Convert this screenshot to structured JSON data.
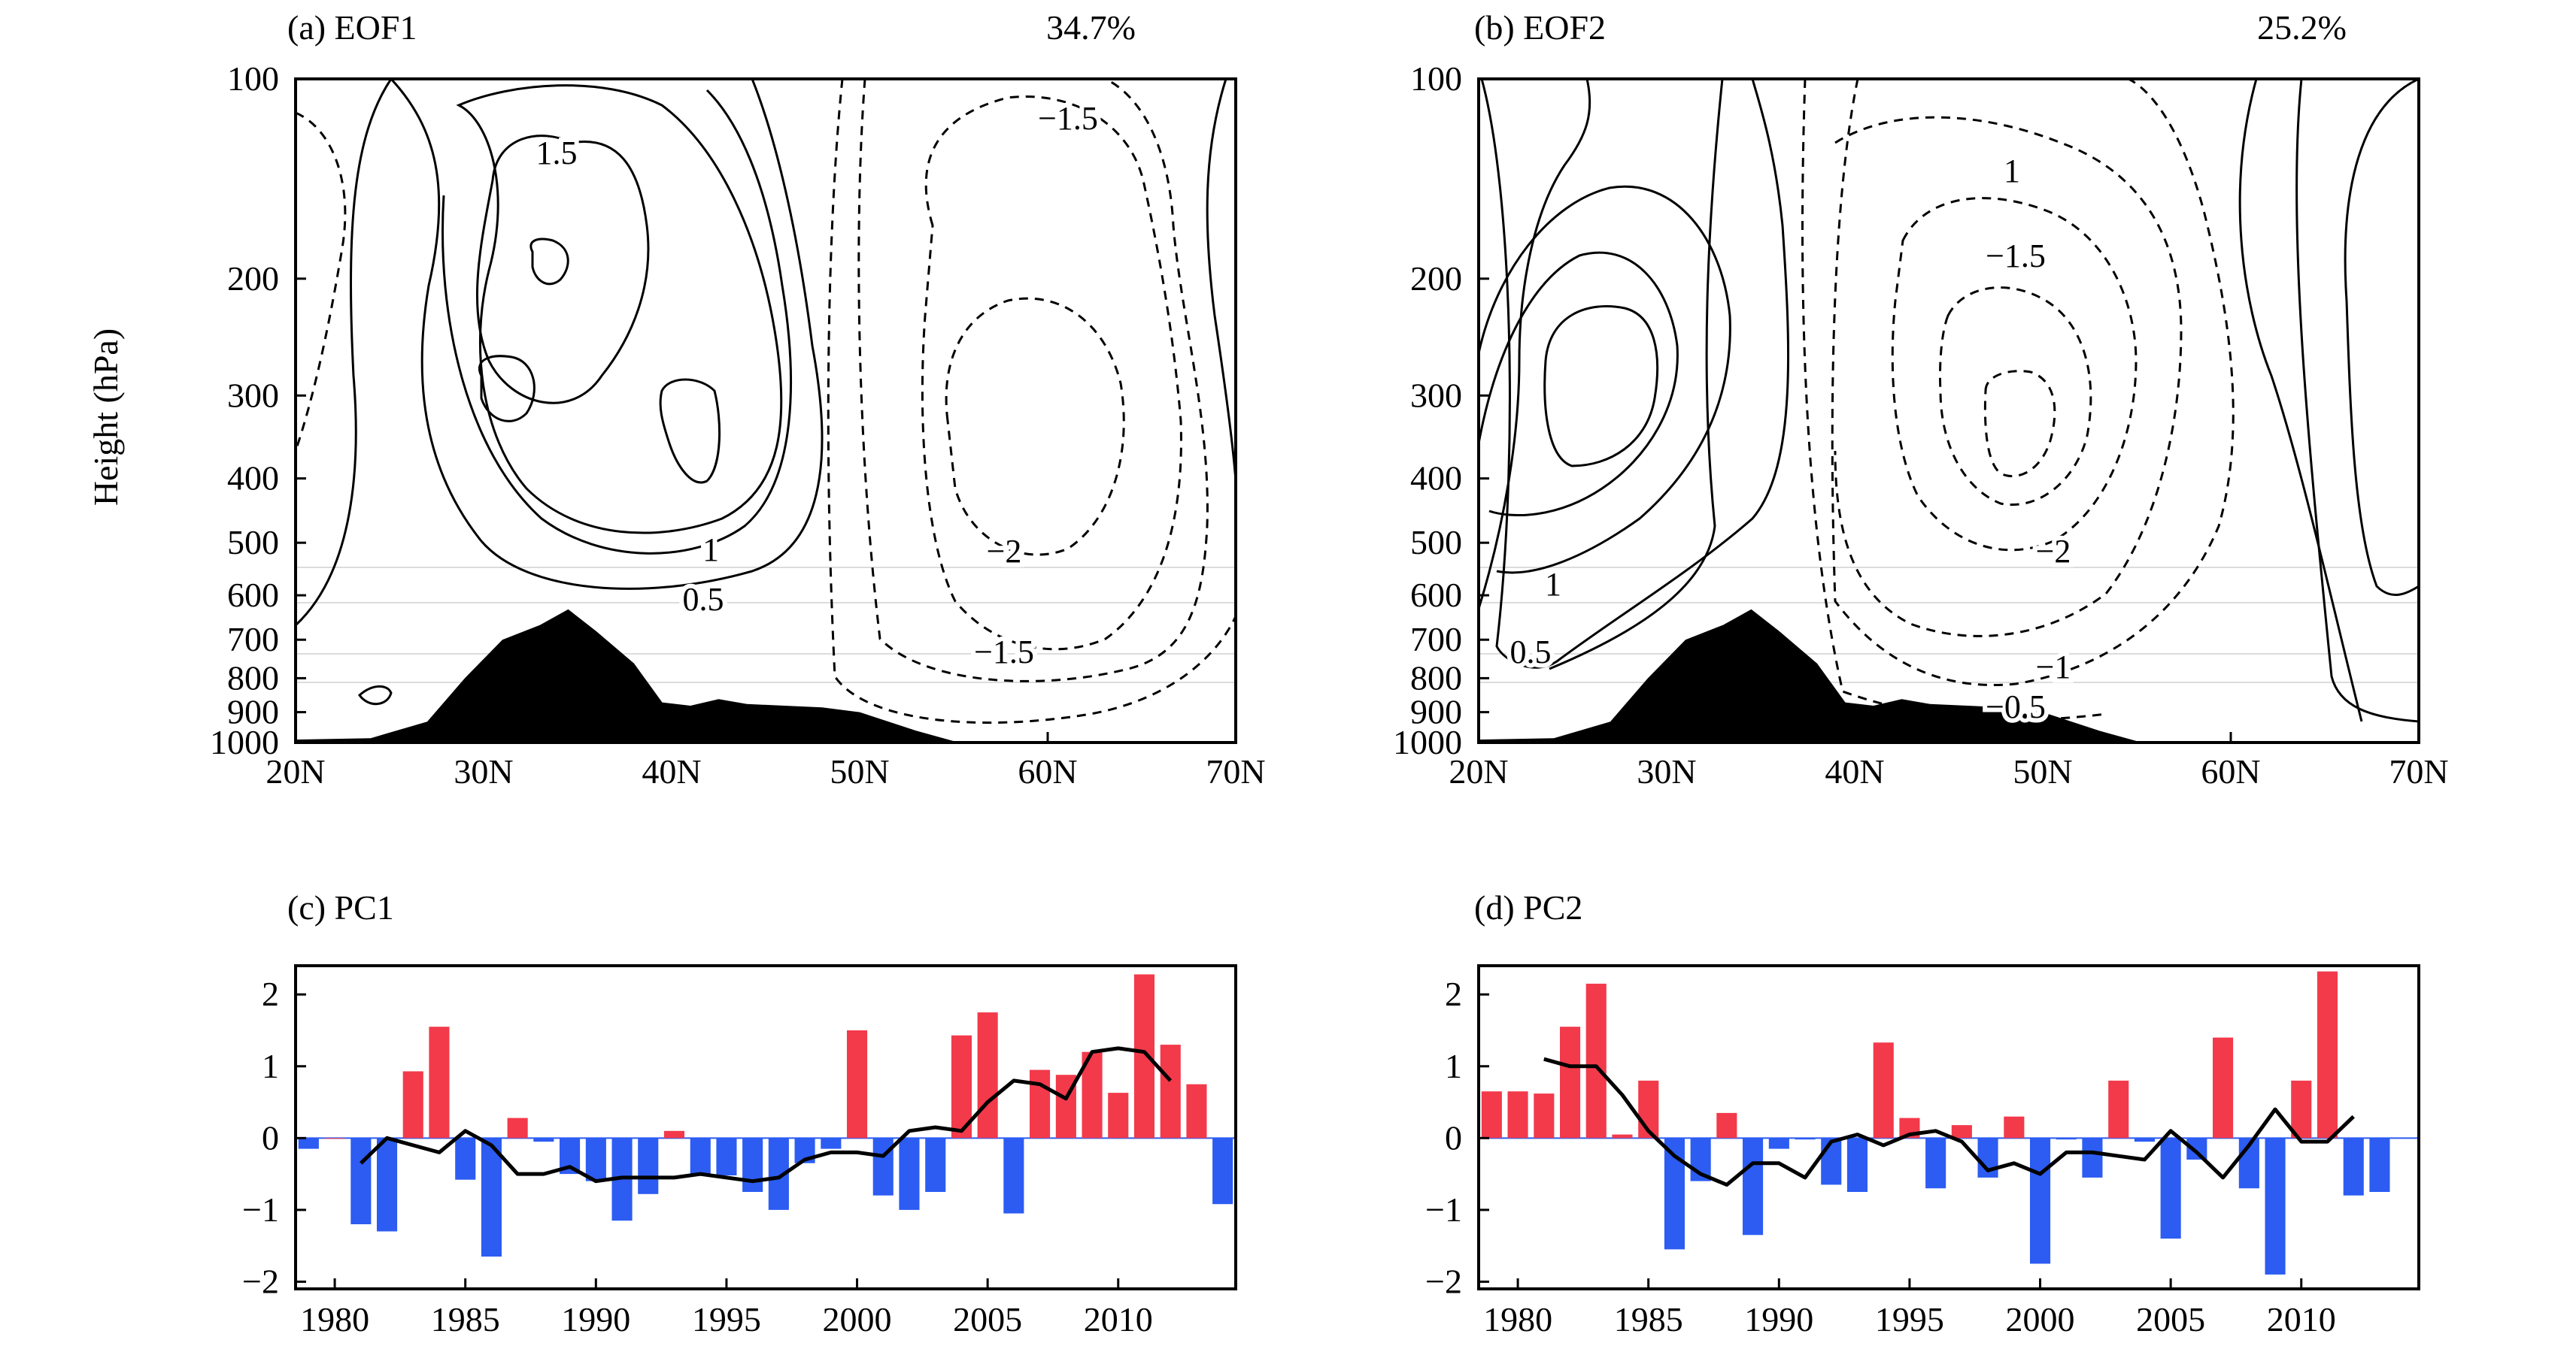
{
  "chart_data": [
    {
      "type": "contour",
      "panel": "a",
      "title": "(a) EOF1",
      "variance": "34.7%",
      "ylabel": "Height (hPa)",
      "xlabel": "",
      "x_ticks": [
        "20N",
        "30N",
        "40N",
        "50N",
        "60N",
        "70N"
      ],
      "x_range": [
        20,
        70
      ],
      "y_ticks": [
        "100",
        "200",
        "300",
        "400",
        "500",
        "600",
        "700",
        "800",
        "900",
        "1000"
      ],
      "y_range": [
        100,
        1000
      ],
      "y_scale": "log",
      "contour_labels": [
        "1.5",
        "1",
        "0.5",
        "−1.5",
        "−2",
        "−1.5"
      ],
      "terrain_profile": {
        "lat": [
          20,
          24,
          27,
          29,
          31,
          33,
          34.5,
          36,
          38,
          39.5,
          41,
          42.5,
          44,
          46,
          48,
          50,
          53,
          55,
          70
        ],
        "p": [
          990,
          985,
          930,
          800,
          700,
          665,
          630,
          680,
          760,
          870,
          880,
          860,
          875,
          880,
          885,
          900,
          960,
          995,
          995
        ]
      }
    },
    {
      "type": "contour",
      "panel": "b",
      "title": "(b) EOF2",
      "variance": "25.2%",
      "x_ticks": [
        "20N",
        "30N",
        "40N",
        "50N",
        "60N",
        "70N"
      ],
      "x_range": [
        20,
        70
      ],
      "y_ticks": [
        "100",
        "200",
        "300",
        "400",
        "500",
        "600",
        "700",
        "800",
        "900",
        "1000"
      ],
      "y_range": [
        100,
        1000
      ],
      "y_scale": "log",
      "contour_labels": [
        "1",
        "−1.5",
        "−2",
        "1",
        "0.5",
        "−1",
        "−0.5"
      ],
      "terrain_profile": {
        "lat": [
          20,
          24,
          27,
          29,
          31,
          33,
          34.5,
          36,
          38,
          39.5,
          41,
          42.5,
          44,
          46,
          48,
          50,
          53,
          55,
          70
        ],
        "p": [
          990,
          985,
          930,
          800,
          700,
          665,
          630,
          680,
          760,
          870,
          880,
          860,
          875,
          880,
          885,
          900,
          960,
          995,
          995
        ]
      }
    },
    {
      "type": "bar",
      "panel": "c",
      "title": "(c) PC1",
      "x_ticks": [
        "1980",
        "1985",
        "1990",
        "1995",
        "2000",
        "2005",
        "2010"
      ],
      "y_ticks": [
        "2",
        "1",
        "0",
        "−1",
        "−2"
      ],
      "ylim": [
        -2.1,
        2.4
      ],
      "xlim": [
        1978.5,
        2014.5
      ],
      "positive_color": "#f23a4b",
      "negative_color": "#2c5cf2",
      "years": [
        1979,
        1980,
        1981,
        1982,
        1983,
        1984,
        1985,
        1986,
        1987,
        1988,
        1989,
        1990,
        1991,
        1992,
        1993,
        1994,
        1995,
        1996,
        1997,
        1998,
        1999,
        2000,
        2001,
        2002,
        2003,
        2004,
        2005,
        2006,
        2007,
        2008,
        2009,
        2010,
        2011,
        2012,
        2013,
        2014
      ],
      "values": [
        -0.15,
        0,
        -1.2,
        -1.3,
        0.93,
        1.55,
        -0.58,
        -1.65,
        0.28,
        -0.05,
        -0.5,
        -0.6,
        -1.15,
        -0.78,
        0.1,
        -0.5,
        -0.52,
        -0.75,
        -1.0,
        -0.35,
        -0.15,
        1.5,
        -0.8,
        -1.0,
        -0.75,
        1.43,
        1.75,
        -1.05,
        0.95,
        0.88,
        1.2,
        0.63,
        2.28,
        1.3,
        0.75,
        -0.92
      ],
      "smooth_years": [
        1981,
        1982,
        1983,
        1984,
        1985,
        1986,
        1987,
        1988,
        1989,
        1990,
        1991,
        1992,
        1993,
        1994,
        1995,
        1996,
        1997,
        1998,
        1999,
        2000,
        2001,
        2002,
        2003,
        2004,
        2005,
        2006,
        2007,
        2008,
        2009,
        2010,
        2011,
        2012
      ],
      "smooth_values": [
        -0.35,
        0,
        -0.1,
        -0.2,
        0.1,
        -0.1,
        -0.5,
        -0.5,
        -0.4,
        -0.6,
        -0.55,
        -0.55,
        -0.55,
        -0.5,
        -0.55,
        -0.6,
        -0.55,
        -0.3,
        -0.2,
        -0.2,
        -0.25,
        0.1,
        0.15,
        0.1,
        0.5,
        0.8,
        0.75,
        0.55,
        1.2,
        1.25,
        1.2,
        0.8
      ]
    },
    {
      "type": "bar",
      "panel": "d",
      "title": "(d) PC2",
      "x_ticks": [
        "1980",
        "1985",
        "1990",
        "1995",
        "2000",
        "2005",
        "2010"
      ],
      "y_ticks": [
        "2",
        "1",
        "0",
        "−1",
        "−2"
      ],
      "ylim": [
        -2.1,
        2.4
      ],
      "xlim": [
        1978.5,
        2014.5
      ],
      "positive_color": "#f23a4b",
      "negative_color": "#2c5cf2",
      "years": [
        1979,
        1980,
        1981,
        1982,
        1983,
        1984,
        1985,
        1986,
        1987,
        1988,
        1989,
        1990,
        1991,
        1992,
        1993,
        1994,
        1995,
        1996,
        1997,
        1998,
        1999,
        2000,
        2001,
        2002,
        2003,
        2004,
        2005,
        2006,
        2007,
        2008,
        2009,
        2010,
        2011,
        2012,
        2013
      ],
      "values": [
        0.65,
        0.65,
        0.62,
        1.55,
        2.15,
        0.05,
        0.8,
        -1.55,
        -0.6,
        0.35,
        -1.35,
        -0.15,
        -0.02,
        -0.65,
        -0.75,
        1.33,
        0.28,
        -0.7,
        0.18,
        -0.55,
        0.3,
        -1.75,
        -0.02,
        -0.55,
        0.8,
        -0.05,
        -1.4,
        -0.3,
        1.4,
        -0.7,
        -1.9,
        0.8,
        2.32,
        -0.8,
        -0.75
      ],
      "smooth_years": [
        1981,
        1982,
        1983,
        1984,
        1985,
        1986,
        1987,
        1988,
        1989,
        1990,
        1991,
        1992,
        1993,
        1994,
        1995,
        1996,
        1997,
        1998,
        1999,
        2000,
        2001,
        2002,
        2003,
        2004,
        2005,
        2006,
        2007,
        2008,
        2009,
        2010,
        2011,
        2012
      ],
      "smooth_values": [
        1.1,
        1.0,
        1.0,
        0.6,
        0.1,
        -0.25,
        -0.5,
        -0.65,
        -0.35,
        -0.35,
        -0.55,
        -0.05,
        0.05,
        -0.1,
        0.05,
        0.1,
        -0.05,
        -0.45,
        -0.35,
        -0.5,
        -0.2,
        -0.2,
        -0.25,
        -0.3,
        0.1,
        -0.2,
        -0.55,
        -0.1,
        0.4,
        -0.05,
        -0.05,
        0.3
      ]
    }
  ]
}
